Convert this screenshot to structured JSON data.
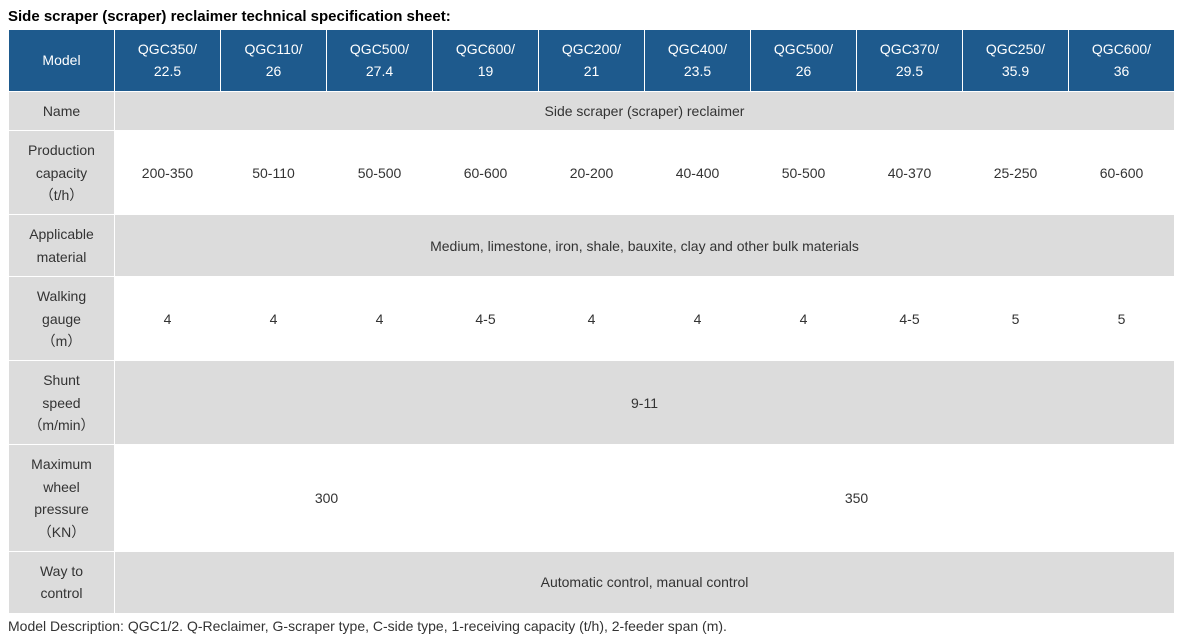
{
  "title": "Side scraper (scraper) reclaimer technical specification sheet:",
  "colors": {
    "header_bg": "#1e5a8d",
    "header_text": "#ffffff",
    "label_bg": "#dcdcdc",
    "odd_bg": "#ffffff",
    "even_bg": "#dcdcdc",
    "border": "#ffffff",
    "text": "#333333"
  },
  "typography": {
    "title_fontsize": 15,
    "title_weight": "bold",
    "cell_fontsize": 14,
    "line_height": 1.6
  },
  "table": {
    "model_label": "Model",
    "models": [
      {
        "line1": "QGC350/",
        "line2": "22.5"
      },
      {
        "line1": "QGC110/",
        "line2": "26"
      },
      {
        "line1": "QGC500/",
        "line2": "27.4"
      },
      {
        "line1": "QGC600/",
        "line2": "19"
      },
      {
        "line1": "QGC200/",
        "line2": "21"
      },
      {
        "line1": "QGC400/",
        "line2": "23.5"
      },
      {
        "line1": "QGC500/",
        "line2": "26"
      },
      {
        "line1": "QGC370/",
        "line2": "29.5"
      },
      {
        "line1": "QGC250/",
        "line2": "35.9"
      },
      {
        "line1": "QGC600/",
        "line2": "36"
      }
    ],
    "rows": [
      {
        "label": "Name",
        "parity": "even",
        "cells": [
          {
            "span": 10,
            "value": "Side scraper (scraper) reclaimer"
          }
        ]
      },
      {
        "label_lines": [
          "Production",
          "capacity",
          "（t/h）"
        ],
        "parity": "odd",
        "cells": [
          {
            "span": 1,
            "value": "200-350"
          },
          {
            "span": 1,
            "value": "50-110"
          },
          {
            "span": 1,
            "value": "50-500"
          },
          {
            "span": 1,
            "value": "60-600"
          },
          {
            "span": 1,
            "value": "20-200"
          },
          {
            "span": 1,
            "value": "40-400"
          },
          {
            "span": 1,
            "value": "50-500"
          },
          {
            "span": 1,
            "value": "40-370"
          },
          {
            "span": 1,
            "value": "25-250"
          },
          {
            "span": 1,
            "value": "60-600"
          }
        ]
      },
      {
        "label_lines": [
          "Applicable",
          "material"
        ],
        "parity": "even",
        "cells": [
          {
            "span": 10,
            "value": "Medium, limestone, iron, shale, bauxite, clay and other bulk materials"
          }
        ]
      },
      {
        "label_lines": [
          "Walking",
          "gauge",
          "（m）"
        ],
        "parity": "odd",
        "cells": [
          {
            "span": 1,
            "value": "4"
          },
          {
            "span": 1,
            "value": "4"
          },
          {
            "span": 1,
            "value": "4"
          },
          {
            "span": 1,
            "value": "4-5"
          },
          {
            "span": 1,
            "value": "4"
          },
          {
            "span": 1,
            "value": "4"
          },
          {
            "span": 1,
            "value": "4"
          },
          {
            "span": 1,
            "value": "4-5"
          },
          {
            "span": 1,
            "value": "5"
          },
          {
            "span": 1,
            "value": "5"
          }
        ]
      },
      {
        "label_lines": [
          "Shunt",
          "speed",
          "（m/min）"
        ],
        "parity": "even",
        "cells": [
          {
            "span": 10,
            "value": "9-11"
          }
        ]
      },
      {
        "label_lines": [
          "Maximum",
          "wheel",
          "pressure",
          "（KN）"
        ],
        "parity": "odd",
        "cells": [
          {
            "span": 4,
            "value": "300"
          },
          {
            "span": 6,
            "value": "350"
          }
        ]
      },
      {
        "label_lines": [
          "Way to",
          "control"
        ],
        "parity": "even",
        "cells": [
          {
            "span": 10,
            "value": "Automatic control, manual control"
          }
        ]
      }
    ]
  },
  "footer": "Model Description: QGC1/2. Q-Reclaimer, G-scraper type, C-side type, 1-receiving capacity (t/h), 2-feeder span (m)."
}
